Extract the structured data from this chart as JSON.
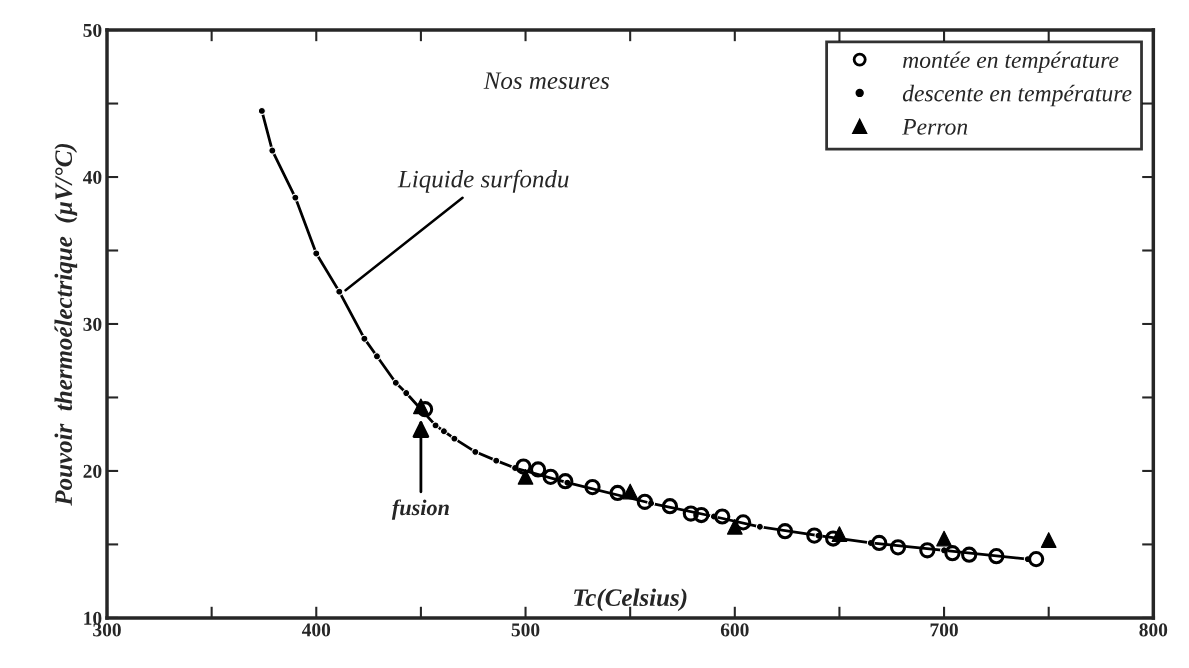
{
  "chart_data": {
    "type": "scatter",
    "xlabel": "Tc(Celsius)",
    "ylabel": "Pouvoir  thermoélectrique  (µV/°C)",
    "xlim": [
      300,
      800
    ],
    "ylim": [
      10,
      50
    ],
    "xticks": [
      300,
      {
        "value": 350,
        "label": null
      },
      400,
      {
        "value": 450,
        "label": null
      },
      500,
      {
        "value": 550,
        "label": null
      },
      600,
      {
        "value": 650,
        "label": null
      },
      700,
      {
        "value": 750,
        "label": null
      },
      800
    ],
    "yticks": [
      10,
      {
        "value": 15,
        "label": null
      },
      20,
      {
        "value": 25,
        "label": null
      },
      30,
      {
        "value": 35,
        "label": null
      },
      40,
      {
        "value": 45,
        "label": null
      },
      50
    ],
    "grid": false,
    "legend": "top right",
    "series": [
      {
        "name": "montée en température",
        "marker": "circle",
        "color": "#000000",
        "x": [
          452,
          499,
          506,
          512,
          519,
          532,
          544,
          557,
          569,
          579,
          584,
          594,
          604,
          624,
          638,
          647,
          669,
          678,
          692,
          704,
          712,
          725,
          744
        ],
        "values": [
          24.2,
          20.3,
          20.1,
          19.6,
          19.3,
          18.9,
          18.5,
          17.9,
          17.6,
          17.1,
          17.0,
          16.9,
          16.5,
          15.9,
          15.6,
          15.4,
          15.1,
          14.8,
          14.6,
          14.4,
          14.3,
          14.2,
          14.0
        ]
      },
      {
        "name": "descente en température",
        "type": "line",
        "marker": "circle",
        "line_style": "solid",
        "color": "#000000",
        "x": [
          374,
          379,
          390,
          400,
          411,
          423,
          429,
          438,
          443,
          450,
          457,
          461,
          466,
          476,
          486,
          495,
          520,
          560,
          590,
          612,
          640,
          665,
          700,
          740
        ],
        "values": [
          44.5,
          41.8,
          38.6,
          34.8,
          32.2,
          29.0,
          27.8,
          26.0,
          25.3,
          24.2,
          23.1,
          22.7,
          22.2,
          21.3,
          20.7,
          20.2,
          19.2,
          17.8,
          16.9,
          16.2,
          15.6,
          15.1,
          14.6,
          14.0
        ]
      },
      {
        "name": "Perron",
        "marker": "triangle",
        "color": "#000000",
        "x": [
          450,
          500,
          550,
          600,
          650,
          700,
          750
        ],
        "values": [
          24.4,
          19.6,
          18.6,
          16.2,
          15.7,
          15.4,
          15.3
        ]
      }
    ],
    "annotations": [
      "Nos mesures",
      {
        "text": "Liquide surfondu",
        "x": 414,
        "y": 32.3
      },
      {
        "text": "fusion",
        "x": 450,
        "y": 23.5
      }
    ]
  }
}
